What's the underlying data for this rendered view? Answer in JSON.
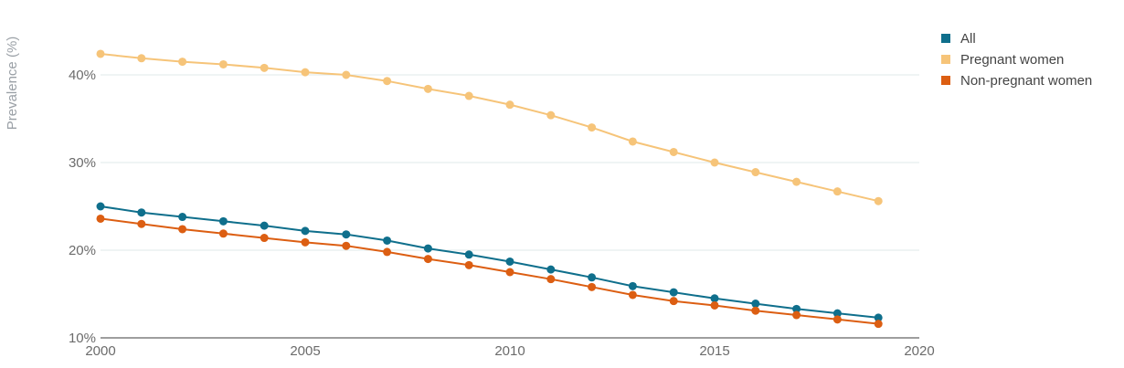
{
  "chart_data": {
    "type": "line",
    "ylabel": "Prevalence (%)",
    "xlabel": "",
    "xlim": [
      2000,
      2020
    ],
    "ylim": [
      10,
      45
    ],
    "x_ticks": [
      2000,
      2005,
      2010,
      2015,
      2020
    ],
    "x_tick_labels": [
      "2000",
      "2005",
      "2010",
      "2015",
      "2020"
    ],
    "y_ticks": [
      10,
      20,
      30,
      40
    ],
    "y_tick_labels": [
      "10%",
      "20%",
      "30%",
      "40%"
    ],
    "grid": "horizontal",
    "legend_position": "top-right",
    "x": [
      2000,
      2001,
      2002,
      2003,
      2004,
      2005,
      2006,
      2007,
      2008,
      2009,
      2010,
      2011,
      2012,
      2013,
      2014,
      2015,
      2016,
      2017,
      2018,
      2019
    ],
    "series": [
      {
        "name": "All",
        "color": "#0f6f8c",
        "values": [
          25.0,
          24.3,
          23.8,
          23.3,
          22.8,
          22.2,
          21.8,
          21.1,
          20.2,
          19.5,
          18.7,
          17.8,
          16.9,
          15.9,
          15.2,
          14.5,
          13.9,
          13.3,
          12.8,
          12.3
        ]
      },
      {
        "name": "Pregnant women",
        "color": "#f6c479",
        "values": [
          42.4,
          41.9,
          41.5,
          41.2,
          40.8,
          40.3,
          40.0,
          39.3,
          38.4,
          37.6,
          36.6,
          35.4,
          34.0,
          32.4,
          31.2,
          30.0,
          28.9,
          27.8,
          26.7,
          25.6
        ]
      },
      {
        "name": "Non-pregnant women",
        "color": "#dc5e12",
        "values": [
          23.6,
          23.0,
          22.4,
          21.9,
          21.4,
          20.9,
          20.5,
          19.8,
          19.0,
          18.3,
          17.5,
          16.7,
          15.8,
          14.9,
          14.2,
          13.7,
          13.1,
          12.6,
          12.1,
          11.6
        ]
      }
    ]
  }
}
